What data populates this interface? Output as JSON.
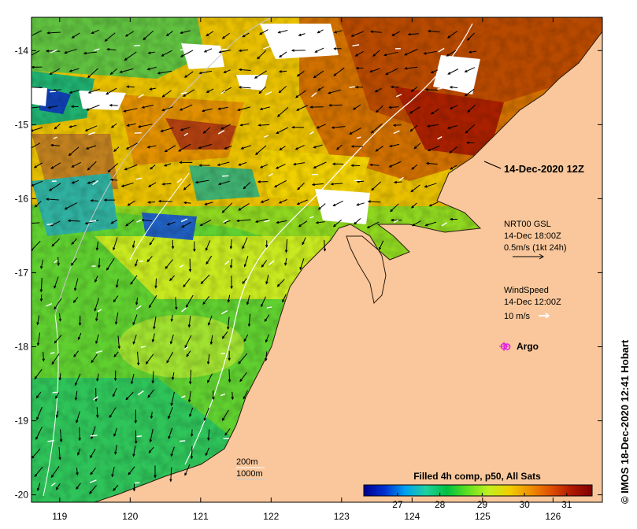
{
  "title": "14-Dec-2020 12Z",
  "credit": "IMOS 18-Dec-2020 12:41 Hobart",
  "credit_icon": "copyright-icon",
  "colors": {
    "land": "#f9c79b",
    "no_data": "#ffffff",
    "argo_marker": "#e020e0",
    "isobath_200m": "#ffffff",
    "isobath_1000m": "#c8c8c8"
  },
  "axes": {
    "x_ticks": [
      "119",
      "120",
      "121",
      "122",
      "123",
      "124",
      "125",
      "126"
    ],
    "y_ticks": [
      "-14",
      "-15",
      "-16",
      "-17",
      "-18",
      "-19",
      "-20"
    ],
    "x_range": [
      118.6,
      126.7
    ],
    "y_range": [
      -13.55,
      -20.1
    ]
  },
  "legend": {
    "current": {
      "title": "NRT00 GSL",
      "time": "14-Dec 18:00Z",
      "scale": "0.5m/s (1kt 24h)"
    },
    "wind": {
      "title": "WindSpeed",
      "time": "14-Dec 12:00Z",
      "scale": "10 m/s"
    },
    "argo": {
      "label": "Argo",
      "icon": "argo-float-icon"
    },
    "isobaths": [
      "200m",
      "1000m"
    ]
  },
  "colorbar": {
    "label": "Filled 4h comp, p50, All Sats",
    "ticks": [
      "27",
      "28",
      "29",
      "30",
      "31"
    ],
    "range": [
      26.2,
      31.6
    ],
    "colors": [
      "#000090",
      "#0030d0",
      "#00a0f0",
      "#20d0a0",
      "#00c040",
      "#60e020",
      "#c0f020",
      "#f0d000",
      "#f09000",
      "#e05000",
      "#b01800",
      "#800000"
    ]
  },
  "argo_floats": [
    {
      "lon": 125.35,
      "lat": -18.0
    }
  ]
}
